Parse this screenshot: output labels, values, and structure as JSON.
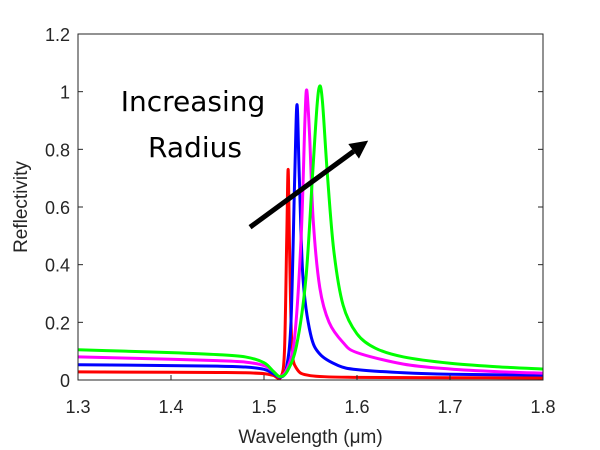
{
  "chart_data": {
    "type": "line",
    "title": "",
    "xlabel": "Wavelength (μm)",
    "ylabel": "Reflectivity",
    "xlim": [
      1.3,
      1.8
    ],
    "ylim": [
      0,
      1.2
    ],
    "xticks": [
      1.3,
      1.4,
      1.5,
      1.6,
      1.7,
      1.8
    ],
    "xtick_labels": [
      "1.3",
      "1.4",
      "1.5",
      "1.6",
      "1.7",
      "1.8"
    ],
    "yticks": [
      0,
      0.2,
      0.4,
      0.6,
      0.8,
      1.0,
      1.2
    ],
    "ytick_labels": [
      "0",
      "0.2",
      "0.4",
      "0.6",
      "0.8",
      "1",
      "1.2"
    ],
    "grid": false,
    "legend": null,
    "annotation": {
      "lines": [
        "Increasing",
        "Radius"
      ],
      "arrow": {
        "from": [
          1.485,
          0.53
        ],
        "to": [
          1.612,
          0.83
        ],
        "color": "#000000"
      }
    },
    "series": [
      {
        "name": "red",
        "color": "#ff0000",
        "x": [
          1.3,
          1.4,
          1.45,
          1.48,
          1.5,
          1.51,
          1.518,
          1.522,
          1.5245,
          1.526,
          1.5275,
          1.53,
          1.535,
          1.55,
          1.6,
          1.7,
          1.8
        ],
        "y": [
          0.028,
          0.027,
          0.026,
          0.025,
          0.022,
          0.016,
          0.01,
          0.1,
          0.5,
          0.73,
          0.45,
          0.12,
          0.04,
          0.015,
          0.009,
          0.008,
          0.007
        ]
      },
      {
        "name": "blue",
        "color": "#0000ff",
        "x": [
          1.3,
          1.4,
          1.45,
          1.48,
          1.5,
          1.51,
          1.518,
          1.524,
          1.529,
          1.533,
          1.5355,
          1.538,
          1.542,
          1.55,
          1.56,
          1.58,
          1.6,
          1.65,
          1.7,
          1.8
        ],
        "y": [
          0.053,
          0.05,
          0.048,
          0.045,
          0.037,
          0.022,
          0.01,
          0.04,
          0.2,
          0.7,
          0.955,
          0.7,
          0.35,
          0.16,
          0.09,
          0.05,
          0.036,
          0.025,
          0.02,
          0.017
        ]
      },
      {
        "name": "magenta",
        "color": "#ff00ff",
        "x": [
          1.3,
          1.4,
          1.45,
          1.48,
          1.5,
          1.51,
          1.517,
          1.525,
          1.533,
          1.54,
          1.544,
          1.546,
          1.549,
          1.553,
          1.56,
          1.57,
          1.585,
          1.6,
          1.65,
          1.7,
          1.75,
          1.8
        ],
        "y": [
          0.08,
          0.072,
          0.067,
          0.062,
          0.05,
          0.03,
          0.012,
          0.04,
          0.15,
          0.5,
          0.9,
          1.005,
          0.85,
          0.55,
          0.32,
          0.2,
          0.13,
          0.095,
          0.055,
          0.038,
          0.029,
          0.024
        ]
      },
      {
        "name": "green",
        "color": "#00ff00",
        "x": [
          1.3,
          1.35,
          1.4,
          1.45,
          1.48,
          1.5,
          1.51,
          1.517,
          1.525,
          1.535,
          1.545,
          1.552,
          1.557,
          1.56,
          1.563,
          1.568,
          1.575,
          1.585,
          1.6,
          1.62,
          1.65,
          1.7,
          1.75,
          1.8
        ],
        "y": [
          0.105,
          0.1,
          0.095,
          0.088,
          0.08,
          0.06,
          0.03,
          0.012,
          0.03,
          0.12,
          0.35,
          0.7,
          0.95,
          1.02,
          0.96,
          0.72,
          0.45,
          0.26,
          0.16,
          0.11,
          0.08,
          0.058,
          0.046,
          0.038
        ]
      }
    ]
  }
}
